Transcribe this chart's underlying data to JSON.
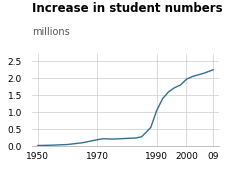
{
  "title": "Increase in student numbers",
  "subtitle": "millions",
  "x_data": [
    1950,
    1955,
    1960,
    1965,
    1970,
    1972,
    1975,
    1978,
    1980,
    1983,
    1985,
    1988,
    1990,
    1992,
    1994,
    1996,
    1998,
    2000,
    2002,
    2004,
    2006,
    2009
  ],
  "y_data": [
    0.02,
    0.03,
    0.05,
    0.1,
    0.19,
    0.22,
    0.21,
    0.22,
    0.23,
    0.24,
    0.28,
    0.55,
    1.05,
    1.4,
    1.6,
    1.72,
    1.8,
    1.97,
    2.05,
    2.1,
    2.15,
    2.25
  ],
  "line_color": "#336e8e",
  "background_color": "#ffffff",
  "grid_color": "#cccccc",
  "title_fontsize": 8.5,
  "subtitle_fontsize": 7,
  "tick_fontsize": 6.5,
  "xlim": [
    1948,
    2011
  ],
  "ylim": [
    0,
    2.7
  ],
  "yticks": [
    0,
    0.5,
    1.0,
    1.5,
    2.0,
    2.5
  ],
  "xtick_labels": [
    "1950",
    "1970",
    "1990",
    "2000",
    "09"
  ],
  "xtick_positions": [
    1950,
    1970,
    1990,
    2000,
    2009
  ]
}
